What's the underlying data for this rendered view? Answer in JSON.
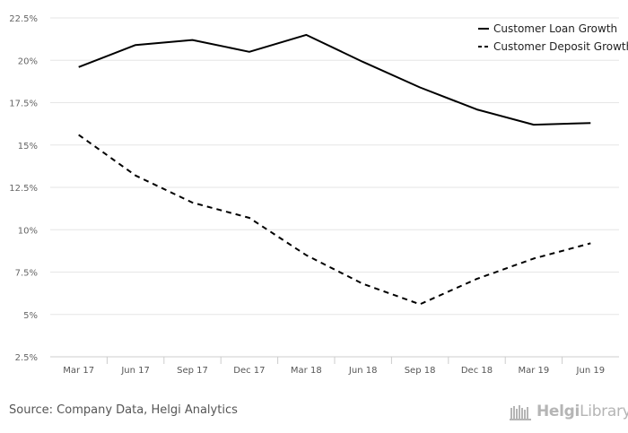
{
  "chart_data": {
    "type": "line",
    "categories": [
      "Mar 17",
      "Jun 17",
      "Sep 17",
      "Dec 17",
      "Mar 18",
      "Jun 18",
      "Sep 18",
      "Dec 18",
      "Mar 19",
      "Jun 19"
    ],
    "series": [
      {
        "name": "Customer Loan Growth",
        "values": [
          19.6,
          20.9,
          21.2,
          20.5,
          21.5,
          19.9,
          18.4,
          17.1,
          16.2,
          16.3
        ],
        "style": "solid"
      },
      {
        "name": "Customer Deposit Growth",
        "values": [
          15.6,
          13.2,
          11.6,
          10.7,
          8.5,
          6.8,
          5.6,
          7.1,
          8.3,
          9.2
        ],
        "style": "dashed"
      }
    ],
    "yticks": [
      "2.5%",
      "5%",
      "7.5%",
      "10%",
      "12.5%",
      "15%",
      "17.5%",
      "20%",
      "22.5%"
    ],
    "ylim": [
      2.5,
      22.5
    ],
    "grid": true,
    "legend_position": "top-right",
    "line_color": "#000000"
  },
  "footer": {
    "source": "Source: Company Data, Helgi Analytics",
    "logo_bold": "Helgi",
    "logo_light": "Library."
  }
}
